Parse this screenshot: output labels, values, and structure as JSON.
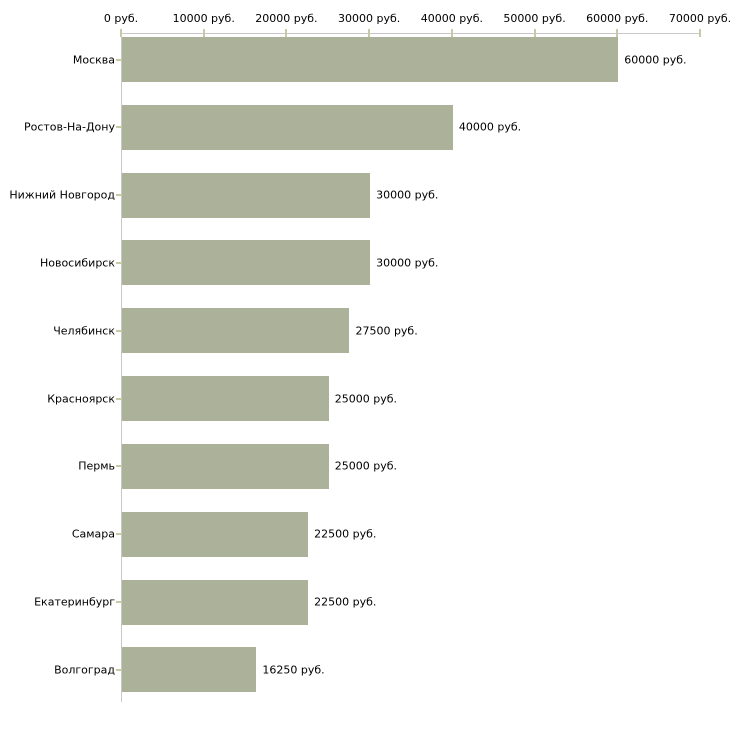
{
  "chart_data": {
    "type": "bar",
    "orientation": "horizontal",
    "title": "",
    "xlabel": "",
    "ylabel": "",
    "unit": "руб.",
    "categories": [
      "Москва",
      "Ростов-На-Дону",
      "Нижний Новгород",
      "Новосибирск",
      "Челябинск",
      "Красноярск",
      "Пермь",
      "Самара",
      "Екатеринбург",
      "Волгоград"
    ],
    "values": [
      60000,
      40000,
      30000,
      30000,
      27500,
      25000,
      25000,
      22500,
      22500,
      16250
    ],
    "value_labels": [
      "60000 руб.",
      "40000 руб.",
      "30000 руб.",
      "30000 руб.",
      "27500 руб.",
      "25000 руб.",
      "25000 руб.",
      "22500 руб.",
      "22500 руб.",
      "16250 руб."
    ],
    "x_axis": {
      "position": "top",
      "xlim": [
        0,
        70000
      ],
      "tick_values": [
        0,
        10000,
        20000,
        30000,
        40000,
        50000,
        60000,
        70000
      ],
      "tick_labels": [
        "0 руб.",
        "10000 руб.",
        "20000 руб.",
        "30000 руб.",
        "40000 руб.",
        "50000 руб.",
        "60000 руб.",
        "70000 руб."
      ]
    },
    "grid": false,
    "legend": false,
    "colors": {
      "bar": "#acb29a",
      "axis_line": "#c8c8c8",
      "tick": "#c9c9a3",
      "text": "#000000",
      "background": "#ffffff"
    }
  }
}
